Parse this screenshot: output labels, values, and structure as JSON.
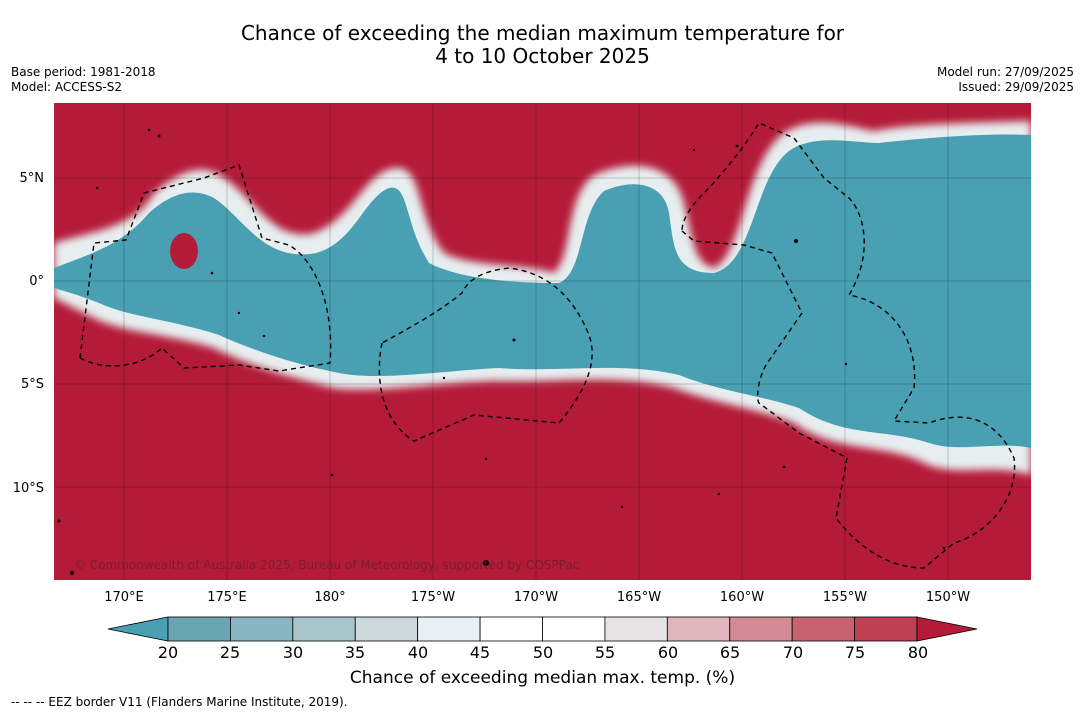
{
  "title_line1": "Chance of exceeding the median maximum temperature for",
  "title_line2": "4 to 10 October 2025",
  "base_period": "Base period: 1981-2018",
  "model": "Model: ACCESS-S2",
  "model_run": "Model run: 27/09/2025",
  "issued": "Issued: 29/09/2025",
  "lat_labels": [
    "5°N",
    "0°",
    "5°S",
    "10°S"
  ],
  "lon_labels": [
    "170°E",
    "175°E",
    "180°",
    "175°W",
    "170°W",
    "165°W",
    "160°W",
    "155°W",
    "150°W"
  ],
  "colorbar": {
    "ticks": [
      "20",
      "25",
      "30",
      "35",
      "40",
      "45",
      "50",
      "55",
      "60",
      "65",
      "70",
      "75",
      "80"
    ],
    "colors": [
      "#6aa5b3",
      "#88b7c2",
      "#a9c5ca",
      "#cdd8db",
      "#e9eff2",
      "#ffffff",
      "#ffffff",
      "#e6e3e4",
      "#dfb6bd",
      "#d48a95",
      "#c86170",
      "#bd4053"
    ],
    "low_color": "#48a0b2",
    "high_color": "#b41b38",
    "title": "Chance of exceeding median max. temp. (%)"
  },
  "copyright": "© Commonwealth of Australia 2025, Bureau of Meteorology, supported by COSPPac",
  "footer": "-- -- -- EEZ border V11 (Flanders Marine Institute, 2019).",
  "map_colors": {
    "warm": "#b41b38",
    "cool": "#48a0b2",
    "neutral": "#ffffff"
  }
}
